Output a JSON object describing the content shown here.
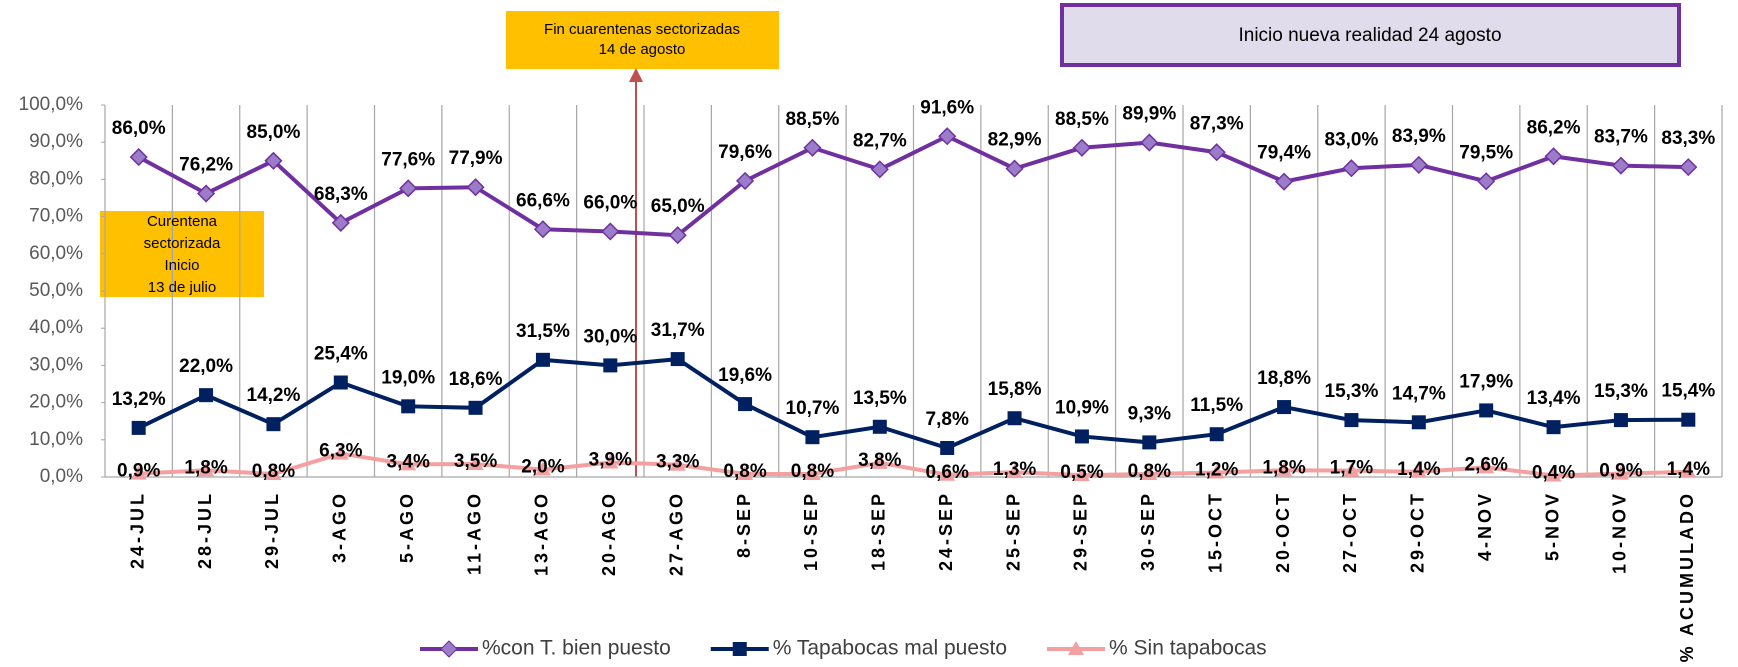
{
  "chart_data": {
    "type": "line",
    "categories": [
      "24-JUL",
      "28-JUL",
      "29-JUL",
      "3-AGO",
      "5-AGO",
      "11-AGO",
      "13-AGO",
      "20-AGO",
      "27-AGO",
      "8-SEP",
      "10-SEP",
      "18-SEP",
      "24-SEP",
      "25-SEP",
      "29-SEP",
      "30-SEP",
      "15-OCT",
      "20-OCT",
      "27-OCT",
      "29-OCT",
      "4-NOV",
      "5-NOV",
      "10-NOV",
      "% ACUMULADO"
    ],
    "series": [
      {
        "name": "%con T. bien puesto",
        "color": "#7030A0",
        "marker": "diamond",
        "values": [
          86.0,
          76.2,
          85.0,
          68.3,
          77.6,
          77.9,
          66.6,
          66.0,
          65.0,
          79.6,
          88.5,
          82.7,
          91.6,
          82.9,
          88.5,
          89.9,
          87.3,
          79.4,
          83.0,
          83.9,
          79.5,
          86.2,
          83.7,
          83.3
        ],
        "value_labels": [
          "86,0%",
          "76,2%",
          "85,0%",
          "68,3%",
          "77,6%",
          "77,9%",
          "66,6%",
          "66,0%",
          "65,0%",
          "79,6%",
          "88,5%",
          "82,7%",
          "91,6%",
          "82,9%",
          "88,5%",
          "89,9%",
          "87,3%",
          "79,4%",
          "83,0%",
          "83,9%",
          "79,5%",
          "86,2%",
          "83,7%",
          "83,3%"
        ]
      },
      {
        "name": "% Tapabocas mal puesto",
        "color": "#002060",
        "marker": "square",
        "values": [
          13.2,
          22.0,
          14.2,
          25.4,
          19.0,
          18.6,
          31.5,
          30.0,
          31.7,
          19.6,
          10.7,
          13.5,
          7.8,
          15.8,
          10.9,
          9.3,
          11.5,
          18.8,
          15.3,
          14.7,
          17.9,
          13.4,
          15.3,
          15.4
        ],
        "value_labels": [
          "13,2%",
          "22,0%",
          "14,2%",
          "25,4%",
          "19,0%",
          "18,6%",
          "31,5%",
          "30,0%",
          "31,7%",
          "19,6%",
          "10,7%",
          "13,5%",
          "7,8%",
          "15,8%",
          "10,9%",
          "9,3%",
          "11,5%",
          "18,8%",
          "15,3%",
          "14,7%",
          "17,9%",
          "13,4%",
          "15,3%",
          "15,4%"
        ]
      },
      {
        "name": "% Sin tapabocas",
        "color": "#F4A0A0",
        "marker": "triangle",
        "values": [
          0.9,
          1.8,
          0.8,
          6.3,
          3.4,
          3.5,
          2.0,
          3.9,
          3.3,
          0.8,
          0.8,
          3.8,
          0.6,
          1.3,
          0.5,
          0.8,
          1.2,
          1.8,
          1.7,
          1.4,
          2.6,
          0.4,
          0.9,
          1.4
        ],
        "value_labels": [
          "0,9%",
          "1,8%",
          "0,8%",
          "6,3%",
          "3,4%",
          "3,5%",
          "2,0%",
          "3,9%",
          "3,3%",
          "0,8%",
          "0,8%",
          "3,8%",
          "0,6%",
          "1,3%",
          "0,5%",
          "0,8%",
          "1,2%",
          "1,8%",
          "1,7%",
          "1,4%",
          "2,6%",
          "0,4%",
          "0,9%",
          "1,4%"
        ]
      }
    ],
    "ylim": [
      0,
      100
    ],
    "yticks": [
      {
        "value": 0,
        "label": "0,0%"
      },
      {
        "value": 10,
        "label": "10,0%"
      },
      {
        "value": 20,
        "label": "20,0%"
      },
      {
        "value": 30,
        "label": "30,0%"
      },
      {
        "value": 40,
        "label": "40,0%"
      },
      {
        "value": 50,
        "label": "50,0%"
      },
      {
        "value": 60,
        "label": "60,0%"
      },
      {
        "value": 70,
        "label": "70,0%"
      },
      {
        "value": 80,
        "label": "80,0%"
      },
      {
        "value": 90,
        "label": "90,0%"
      },
      {
        "value": 100,
        "label": "100,0%"
      }
    ],
    "annotations": [
      {
        "lines": [
          "Fin cuarentenas sectorizadas",
          "14 de agosto"
        ]
      },
      {
        "lines": [
          "Inicio nueva realidad  24 agosto"
        ]
      },
      {
        "lines": [
          "Curentena",
          "sectorizada",
          "Inicio",
          "13 de julio"
        ]
      }
    ],
    "legend": "bottom"
  }
}
